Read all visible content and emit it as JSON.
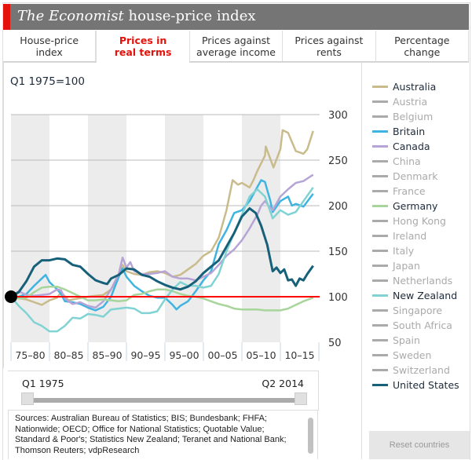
{
  "header": {
    "title_italic": "The Economist",
    "title_rest": " house-price index",
    "accent": "#e3120b"
  },
  "tabs": [
    {
      "label1": "House-price",
      "label2": "index",
      "active": false
    },
    {
      "label1": "Prices in",
      "label2": "real terms",
      "active": true
    },
    {
      "label1": "Prices against",
      "label2": "average income",
      "active": false
    },
    {
      "label1": "Prices against",
      "label2": "rents",
      "active": false
    },
    {
      "label1": "Percentage",
      "label2": "change",
      "active": false
    }
  ],
  "chart_data": {
    "type": "line",
    "subtitle": "Q1 1975=100",
    "ylim": [
      50,
      300
    ],
    "yticks": [
      "300",
      "250",
      "200",
      "150",
      "100",
      "50"
    ],
    "ytick_values": [
      300,
      250,
      200,
      150,
      100,
      50
    ],
    "xlim": [
      1975,
      2015
    ],
    "xtick_labels": [
      "75–80",
      "80–85",
      "85–90",
      "90–95",
      "95–00",
      "00–05",
      "05–10",
      "10–15"
    ],
    "baseline": 100,
    "baseline_color": "#ff0000",
    "grid": true,
    "series": [
      {
        "name": "Australia",
        "color": "#c9bb8c",
        "x": [
          1975,
          1977,
          1979,
          1980,
          1981,
          1981.5,
          1982.5,
          1983,
          1985,
          1986,
          1987,
          1988,
          1989,
          1989.5,
          1990,
          1991,
          1992,
          1993,
          1994,
          1995,
          1996,
          1997,
          1998,
          1999,
          2000,
          2001,
          2002,
          2003,
          2003.8,
          2004.5,
          2005,
          2006,
          2006.5,
          2007,
          2008,
          2008.1,
          2009.1,
          2010,
          2010.3,
          2011,
          2012,
          2013,
          2013.5,
          2014.25
        ],
        "y": [
          100,
          97,
          91,
          96,
          99,
          105,
          96,
          97,
          100,
          101,
          102,
          108,
          122,
          135,
          128,
          125,
          124,
          127,
          128,
          126,
          122,
          124,
          130,
          136,
          145,
          150,
          165,
          195,
          228,
          223,
          225,
          220,
          228,
          238,
          255,
          265,
          242,
          262,
          283,
          280,
          260,
          257,
          262,
          282
        ]
      },
      {
        "name": "Britain",
        "color": "#3fb4e0",
        "x": [
          1975,
          1976,
          1977,
          1978,
          1979,
          1979.5,
          1980,
          1981,
          1981.5,
          1982,
          1983,
          1984,
          1985,
          1986,
          1987,
          1988,
          1989,
          1989.5,
          1990,
          1991,
          1992,
          1993,
          1994,
          1995,
          1996,
          1996.5,
          1997,
          1998,
          1999,
          2000,
          2001,
          2002,
          2003,
          2004,
          2005,
          2006,
          2007.5,
          2008,
          2008.7,
          2009,
          2010,
          2011,
          2011.5,
          2012,
          2013,
          2014.25
        ],
        "y": [
          100,
          100,
          103,
          112,
          120,
          124,
          116,
          108,
          103,
          95,
          94,
          92,
          88,
          85,
          89,
          100,
          122,
          131,
          122,
          112,
          106,
          101,
          99,
          99,
          91,
          86,
          90,
          95,
          106,
          118,
          128,
          158,
          173,
          192,
          195,
          205,
          228,
          226,
          205,
          193,
          205,
          210,
          200,
          202,
          199,
          213
        ]
      },
      {
        "name": "Canada",
        "color": "#b7a4d6",
        "x": [
          1975,
          1976,
          1977,
          1978,
          1979,
          1980,
          1981,
          1981.5,
          1982,
          1983,
          1984,
          1985,
          1986,
          1987,
          1988,
          1989,
          1989.5,
          1990,
          1990.5,
          1991,
          1992,
          1993,
          1994,
          1995,
          1996,
          1997,
          1998,
          1999,
          2000,
          2001,
          2002,
          2003,
          2004,
          2005,
          2006,
          2007,
          2007.5,
          2008,
          2008.5,
          2009,
          2010,
          2011,
          2012,
          2013,
          2014.25
        ],
        "y": [
          100,
          106,
          102,
          101,
          102,
          103,
          108,
          107,
          98,
          92,
          94,
          90,
          88,
          95,
          108,
          125,
          143,
          132,
          138,
          128,
          125,
          125,
          126,
          128,
          122,
          120,
          120,
          118,
          122,
          126,
          135,
          145,
          152,
          162,
          175,
          190,
          200,
          205,
          200,
          195,
          210,
          218,
          225,
          227,
          234
        ]
      },
      {
        "name": "Germany",
        "color": "#a7d59b",
        "x": [
          1975,
          1976,
          1977,
          1978,
          1979,
          1980,
          1981,
          1982,
          1983,
          1984,
          1985,
          1986,
          1987,
          1988,
          1989,
          1990,
          1991,
          1992,
          1993,
          1994,
          1995,
          1996,
          1997,
          1998,
          1999,
          2000,
          2001,
          2002,
          2003,
          2004,
          2005,
          2006,
          2007,
          2008,
          2009,
          2010,
          2011,
          2012,
          2013,
          2014.25
        ],
        "y": [
          100,
          98,
          99,
          105,
          110,
          111,
          111,
          108,
          104,
          100,
          96,
          96,
          97,
          96,
          95,
          96,
          102,
          103,
          106,
          108,
          108,
          106,
          103,
          101,
          100,
          98,
          95,
          92,
          90,
          87,
          86,
          86,
          86,
          85,
          85,
          85,
          87,
          91,
          95,
          99
        ]
      },
      {
        "name": "New Zealand",
        "color": "#80d3d2",
        "x": [
          1975,
          1976,
          1977,
          1978,
          1979,
          1980,
          1981,
          1982,
          1983,
          1984,
          1985,
          1986,
          1987,
          1988,
          1989,
          1990,
          1991,
          1992,
          1993,
          1994,
          1995,
          1996,
          1997,
          1998,
          1999,
          2000,
          2001,
          2002,
          2003,
          2004,
          2005,
          2006,
          2007,
          2008,
          2009,
          2010,
          2011,
          2012,
          2013,
          2014.25
        ],
        "y": [
          100,
          90,
          82,
          72,
          68,
          62,
          62,
          68,
          77,
          76,
          81,
          80,
          78,
          86,
          87,
          88,
          87,
          82,
          82,
          84,
          97,
          108,
          116,
          112,
          112,
          110,
          112,
          125,
          150,
          170,
          190,
          210,
          218,
          210,
          186,
          195,
          190,
          193,
          205,
          220
        ]
      },
      {
        "name": "United States",
        "color": "#17607a",
        "x": [
          1975,
          1976,
          1977,
          1978,
          1979,
          1980,
          1981,
          1982,
          1983,
          1984,
          1985,
          1986,
          1987,
          1987.5,
          1988,
          1989,
          1990,
          1991,
          1992,
          1993,
          1994,
          1995,
          1996,
          1997,
          1998,
          1999,
          2000,
          2001,
          2002,
          2003,
          2004,
          2005,
          2006,
          2006.8,
          2007.5,
          2008.3,
          2009,
          2009.5,
          2010,
          2010.5,
          2011,
          2011.5,
          2012,
          2012.5,
          2013,
          2013.5,
          2014.25
        ],
        "y": [
          100,
          105,
          117,
          133,
          140,
          140,
          142,
          141,
          135,
          133,
          125,
          118,
          115,
          114,
          120,
          124,
          131,
          130,
          124,
          122,
          117,
          113,
          110,
          108,
          111,
          117,
          126,
          133,
          140,
          155,
          170,
          188,
          197,
          192,
          178,
          157,
          128,
          132,
          126,
          130,
          118,
          119,
          112,
          120,
          118,
          125,
          134
        ]
      }
    ]
  },
  "legend": [
    {
      "label": "Australia",
      "color": "#c9bb8c",
      "active": true
    },
    {
      "label": "Austria",
      "color": "#aaaaaa",
      "active": false
    },
    {
      "label": "Belgium",
      "color": "#aaaaaa",
      "active": false
    },
    {
      "label": "Britain",
      "color": "#3fb4e0",
      "active": true
    },
    {
      "label": "Canada",
      "color": "#b7a4d6",
      "active": true
    },
    {
      "label": "China",
      "color": "#aaaaaa",
      "active": false
    },
    {
      "label": "Denmark",
      "color": "#aaaaaa",
      "active": false
    },
    {
      "label": "France",
      "color": "#aaaaaa",
      "active": false
    },
    {
      "label": "Germany",
      "color": "#a7d59b",
      "active": true
    },
    {
      "label": "Hong Kong",
      "color": "#aaaaaa",
      "active": false
    },
    {
      "label": "Ireland",
      "color": "#aaaaaa",
      "active": false
    },
    {
      "label": "Italy",
      "color": "#aaaaaa",
      "active": false
    },
    {
      "label": "Japan",
      "color": "#aaaaaa",
      "active": false
    },
    {
      "label": "Netherlands",
      "color": "#aaaaaa",
      "active": false
    },
    {
      "label": "New Zealand",
      "color": "#80d3d2",
      "active": true
    },
    {
      "label": "Singapore",
      "color": "#aaaaaa",
      "active": false
    },
    {
      "label": "South Africa",
      "color": "#aaaaaa",
      "active": false
    },
    {
      "label": "Spain",
      "color": "#aaaaaa",
      "active": false
    },
    {
      "label": "Sweden",
      "color": "#aaaaaa",
      "active": false
    },
    {
      "label": "Switzerland",
      "color": "#aaaaaa",
      "active": false
    },
    {
      "label": "United States",
      "color": "#17607a",
      "active": true
    }
  ],
  "slider": {
    "start_label": "Q1 1975",
    "end_label": "Q2 2014"
  },
  "sources": "Sources: Australian Bureau of Statistics; BIS; Bundesbank; FHFA; Nationwide; OECD; Office for National Statistics; Quotable Value; Standard & Poor's; Statistics New Zealand; Teranet and National Bank; Thomson Reuters; vdpResearch",
  "reset_label": "Reset countries"
}
